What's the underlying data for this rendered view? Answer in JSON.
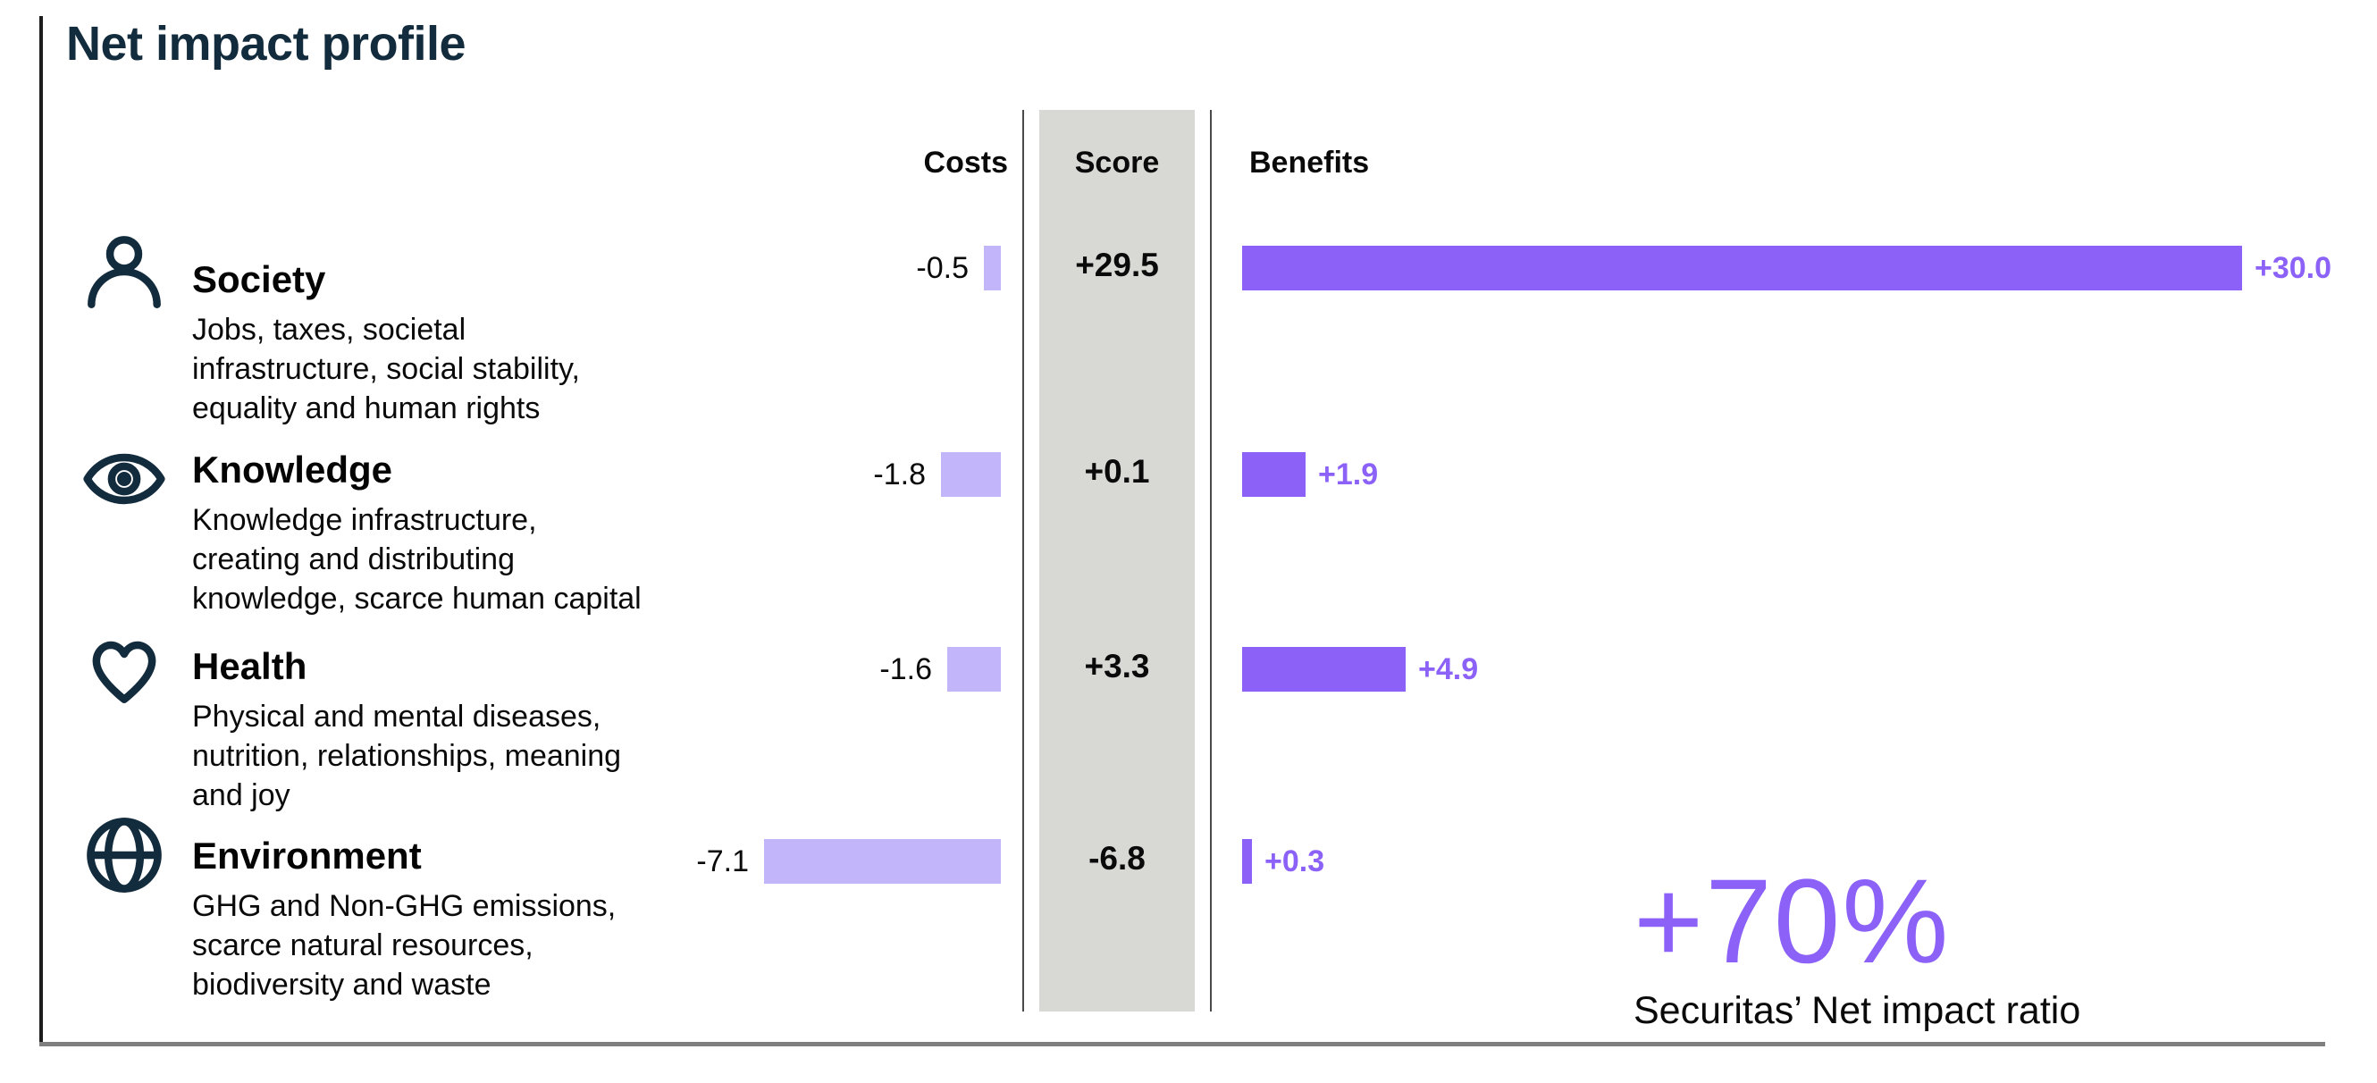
{
  "title": "Net impact profile",
  "colors": {
    "title_navy": "#122b3d",
    "icon_navy": "#122b3d",
    "cost_bar": "#c3b5fa",
    "benefit_bar": "#8b61f8",
    "accent_text": "#8b61f8",
    "score_band_bg": "#d8d8d5"
  },
  "chart_data": {
    "type": "bar",
    "title": "Net impact profile",
    "orientation": "horizontal",
    "grid": false,
    "legend_position": "none",
    "column_headers": {
      "costs": "Costs",
      "score": "Score",
      "benefits": "Benefits"
    },
    "categories": [
      "Society",
      "Knowledge",
      "Health",
      "Environment"
    ],
    "series": [
      {
        "name": "Costs",
        "values": [
          -0.5,
          -1.8,
          -1.6,
          -7.1
        ]
      },
      {
        "name": "Score",
        "values": [
          29.5,
          0.1,
          3.3,
          -6.8
        ]
      },
      {
        "name": "Benefits",
        "values": [
          30.0,
          1.9,
          4.9,
          0.3
        ]
      }
    ],
    "rows": [
      {
        "category": "Society",
        "icon": "person-icon",
        "description_lines": [
          "Jobs, taxes, societal",
          "infrastructure, social stability,",
          "equality and human rights"
        ],
        "cost": -0.5,
        "cost_label": "-0.5",
        "score": 29.5,
        "score_label": "+29.5",
        "benefit": 30.0,
        "benefit_label": "+30.0"
      },
      {
        "category": "Knowledge",
        "icon": "eye-icon",
        "description_lines": [
          "Knowledge infrastructure,",
          "creating and distributing",
          "knowledge, scarce human capital"
        ],
        "cost": -1.8,
        "cost_label": "-1.8",
        "score": 0.1,
        "score_label": "+0.1",
        "benefit": 1.9,
        "benefit_label": "+1.9"
      },
      {
        "category": "Health",
        "icon": "heart-icon",
        "description_lines": [
          "Physical and mental diseases,",
          "nutrition, relationships, meaning",
          "and joy"
        ],
        "cost": -1.6,
        "cost_label": "-1.6",
        "score": 3.3,
        "score_label": "+3.3",
        "benefit": 4.9,
        "benefit_label": "+4.9"
      },
      {
        "category": "Environment",
        "icon": "globe-icon",
        "description_lines": [
          "GHG and Non-GHG emissions,",
          "scarce natural resources,",
          "biodiversity and waste"
        ],
        "cost": -7.1,
        "cost_label": "-7.1",
        "score": -6.8,
        "score_label": "-6.8",
        "benefit": 0.3,
        "benefit_label": "+0.3"
      }
    ],
    "summary": {
      "value": "+70%",
      "label": "Securitas’ Net impact ratio"
    }
  }
}
